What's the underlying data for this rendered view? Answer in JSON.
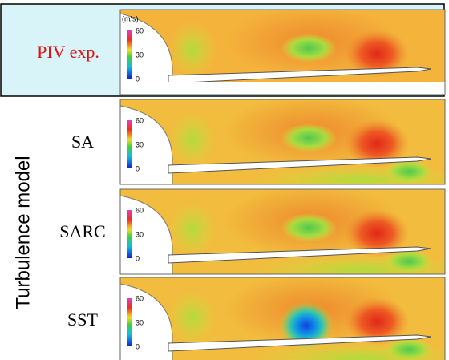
{
  "axis_label": "Turbulence model",
  "panels": [
    {
      "label": "PIV exp.",
      "colorbar": {
        "unit": "(m/s)",
        "ticks": [
          "60",
          "30",
          "0"
        ]
      }
    },
    {
      "label": "SA",
      "colorbar": {
        "ticks": [
          "60",
          "30",
          "0"
        ]
      }
    },
    {
      "label": "SARC",
      "colorbar": {
        "ticks": [
          "60",
          "30",
          "0"
        ]
      }
    },
    {
      "label": "SST",
      "colorbar": {
        "ticks": [
          "60",
          "30",
          "0"
        ]
      }
    }
  ]
}
